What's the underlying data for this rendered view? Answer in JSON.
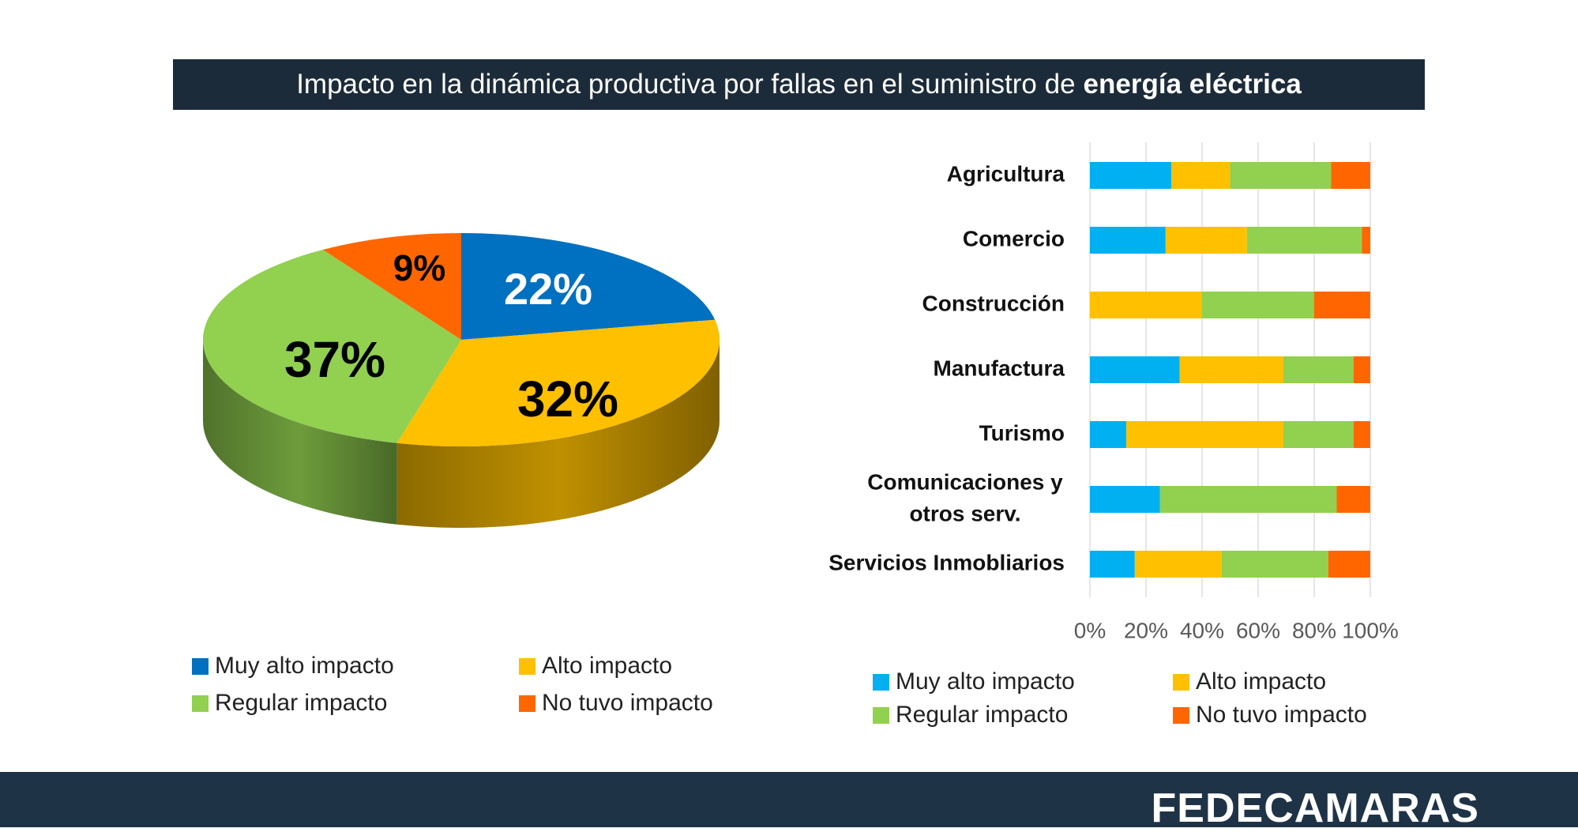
{
  "title": {
    "prefix": "Impacto en la dinámica productiva por fallas en el suministro de",
    "bold": "energía eléctrica"
  },
  "colors": {
    "pie": [
      "#0070c0",
      "#ffc000",
      "#92d050",
      "#ff6600"
    ],
    "bar": [
      "#00b0f0",
      "#ffc000",
      "#92d050",
      "#ff6600"
    ],
    "title_bg": "#1c2b39",
    "footer_bg": "#1f3347"
  },
  "chart_data": [
    {
      "type": "pie",
      "categories": [
        "Muy alto impacto",
        "Alto impacto",
        "Regular impacto",
        "No tuvo impacto"
      ],
      "values": [
        22,
        32,
        37,
        9
      ],
      "labels": [
        "22%",
        "32%",
        "37%",
        "9%"
      ],
      "style": "3d",
      "legend_position": "bottom"
    },
    {
      "type": "bar",
      "orientation": "horizontal",
      "stacked": "percent",
      "categories": [
        "Agricultura",
        "Comercio",
        "Construcción",
        "Manufactura",
        "Turismo",
        "Comunicaciones y otros serv.",
        "Servicios Inmobliarios"
      ],
      "category_lines": [
        [
          "Agricultura"
        ],
        [
          "Comercio"
        ],
        [
          "Construcción"
        ],
        [
          "Manufactura"
        ],
        [
          "Turismo"
        ],
        [
          "Comunicaciones y",
          "otros serv."
        ],
        [
          "Servicios Inmobliarios"
        ]
      ],
      "series": [
        {
          "name": "Muy alto impacto",
          "values": [
            29,
            27,
            0,
            32,
            13,
            25,
            16
          ]
        },
        {
          "name": "Alto impacto",
          "values": [
            21,
            29,
            40,
            37,
            56,
            0,
            31
          ]
        },
        {
          "name": "Regular impacto",
          "values": [
            36,
            41,
            40,
            25,
            25,
            63,
            38
          ]
        },
        {
          "name": "No tuvo impacto",
          "values": [
            14,
            3,
            20,
            6,
            6,
            12,
            15
          ]
        }
      ],
      "x_ticks": [
        "0%",
        "20%",
        "40%",
        "60%",
        "80%",
        "100%"
      ],
      "xlim": [
        0,
        100
      ],
      "grid": "vertical",
      "legend_position": "bottom"
    }
  ],
  "legend_pie": [
    "Muy alto impacto",
    "Alto impacto",
    "Regular impacto",
    "No tuvo impacto"
  ],
  "legend_bar": [
    "Muy alto impacto",
    "Alto impacto",
    "Regular impacto",
    "No tuvo impacto"
  ],
  "footer": {
    "logo_text": "FEDECAMARAS"
  }
}
